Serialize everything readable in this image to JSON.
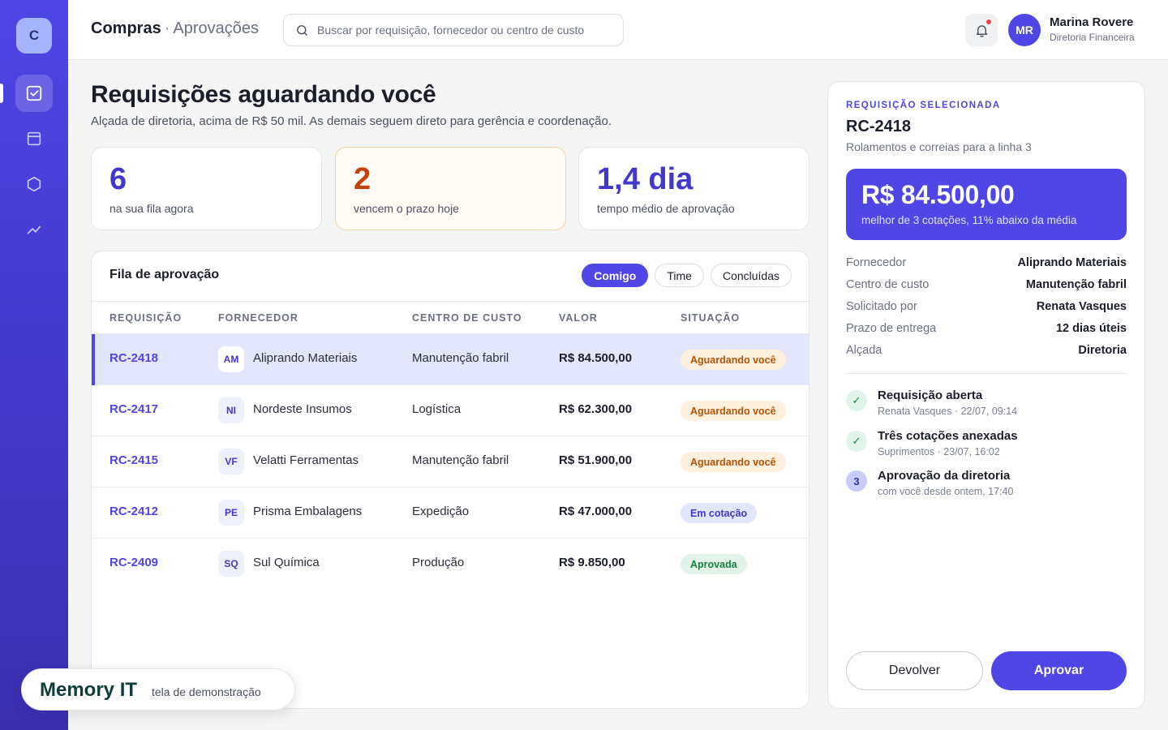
{
  "app": {
    "logo_letter": "C"
  },
  "sidebar": {
    "items": [
      {
        "icon": "checklist-icon",
        "active": true
      },
      {
        "icon": "archive-icon",
        "active": false
      },
      {
        "icon": "hexagon-icon",
        "active": false
      },
      {
        "icon": "trend-icon",
        "active": false
      }
    ]
  },
  "header": {
    "section": "Compras",
    "separator": "·",
    "page": "Aprovações",
    "search_placeholder": "Buscar por requisição, fornecedor ou centro de custo",
    "user": {
      "initials": "MR",
      "name": "Marina Rovere",
      "role": "Diretoria Financeira"
    }
  },
  "main": {
    "title": "Requisições aguardando você",
    "subtitle": "Alçada de diretoria, acima de R$ 50 mil. As demais seguem direto para gerência e coordenação.",
    "stats": [
      {
        "value": "6",
        "label": "na sua fila agora",
        "color": "#4338ca"
      },
      {
        "value": "2",
        "label": "vencem o prazo hoje",
        "color": "#c2410c"
      },
      {
        "value": "1,4 dia",
        "label": "tempo médio de aprovação",
        "color": "#4338ca"
      }
    ]
  },
  "queue": {
    "title": "Fila de aprovação",
    "tabs": [
      "Comigo",
      "Time",
      "Concluídas"
    ],
    "active_tab": "Comigo",
    "columns": [
      "REQUISIÇÃO",
      "FORNECEDOR",
      "CENTRO DE CUSTO",
      "VALOR",
      "SITUAÇÃO"
    ],
    "rows": [
      {
        "id": "RC-2418",
        "initials": "AM",
        "supplier": "Aliprando Materiais",
        "cost_center": "Manutenção fabril",
        "value": "R$ 84.500,00",
        "status": "Aguardando você",
        "status_type": "wait"
      },
      {
        "id": "RC-2417",
        "initials": "NI",
        "supplier": "Nordeste Insumos",
        "cost_center": "Logística",
        "value": "R$ 62.300,00",
        "status": "Aguardando você",
        "status_type": "wait"
      },
      {
        "id": "RC-2415",
        "initials": "VF",
        "supplier": "Velatti Ferramentas",
        "cost_center": "Manutenção fabril",
        "value": "R$ 51.900,00",
        "status": "Aguardando você",
        "status_type": "wait"
      },
      {
        "id": "RC-2412",
        "initials": "PE",
        "supplier": "Prisma Embalagens",
        "cost_center": "Expedição",
        "value": "R$ 47.000,00",
        "status": "Em cotação",
        "status_type": "quote"
      },
      {
        "id": "RC-2409",
        "initials": "SQ",
        "supplier": "Sul Química",
        "cost_center": "Produção",
        "value": "R$ 9.850,00",
        "status": "Aprovada",
        "status_type": "ok"
      }
    ]
  },
  "detail": {
    "kicker": "REQUISIÇÃO SELECIONADA",
    "id": "RC-2418",
    "description": "Rolamentos e correias para a linha 3",
    "amount": "R$ 84.500,00",
    "amount_note": "melhor de 3 cotações, 11% abaixo da média",
    "fields": [
      {
        "key": "Fornecedor",
        "value": "Aliprando Materiais"
      },
      {
        "key": "Centro de custo",
        "value": "Manutenção fabril"
      },
      {
        "key": "Solicitado por",
        "value": "Renata Vasques"
      },
      {
        "key": "Prazo de entrega",
        "value": "12 dias úteis"
      },
      {
        "key": "Alçada",
        "value": "Diretoria"
      }
    ],
    "timeline": [
      {
        "marker": "✓",
        "title": "Requisição aberta",
        "sub": "Renata Vasques · 22/07, 09:14",
        "state": "done"
      },
      {
        "marker": "✓",
        "title": "Três cotações anexadas",
        "sub": "Suprimentos · 23/07, 16:02",
        "state": "done"
      },
      {
        "marker": "3",
        "title": "Aprovação da diretoria",
        "sub": "com você desde ontem, 17:40",
        "state": "current"
      }
    ],
    "actions": {
      "secondary": "Devolver",
      "primary": "Aprovar"
    }
  },
  "watermark": {
    "brand": "Memory IT",
    "note": "tela de demonstração"
  }
}
